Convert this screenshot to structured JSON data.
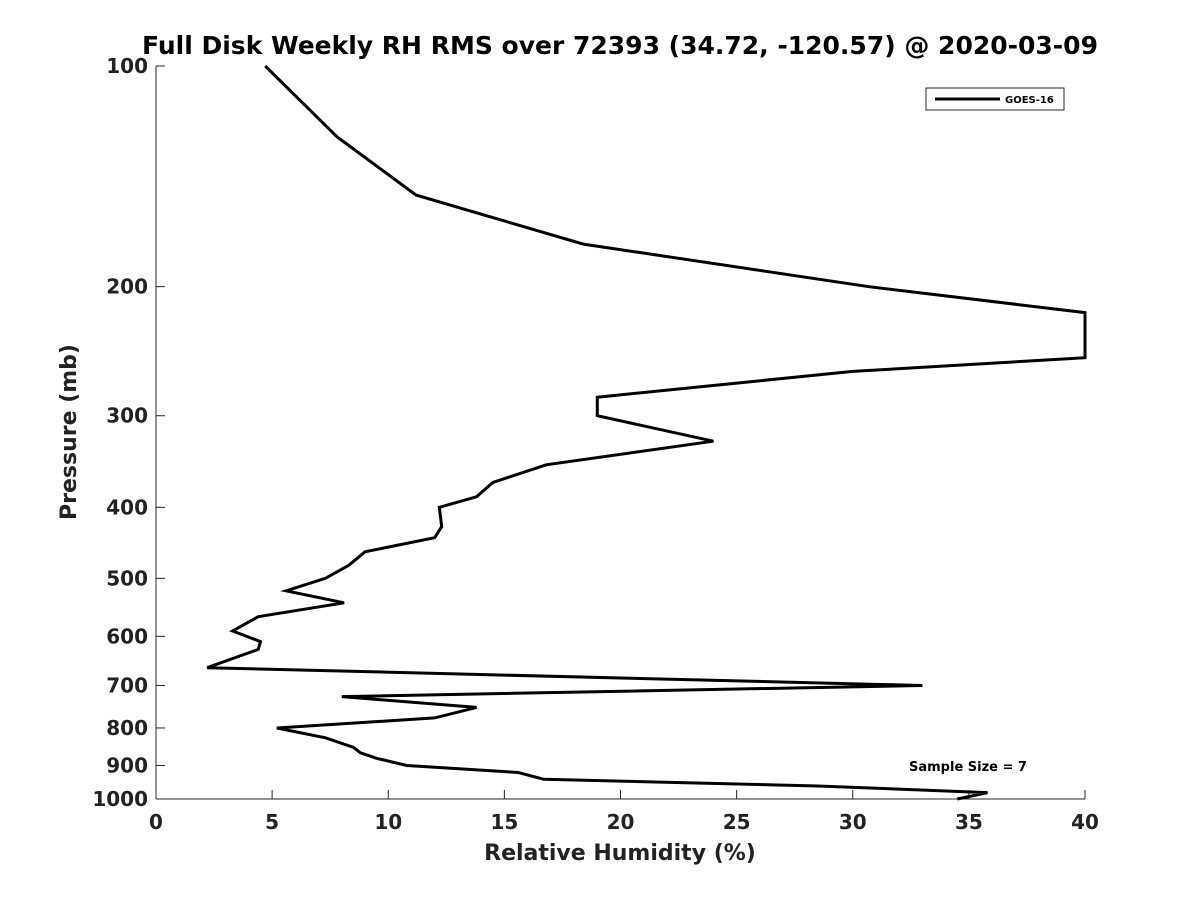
{
  "chart_data": {
    "type": "line",
    "title": "Full Disk Weekly RH RMS over 72393 (34.72, -120.57) @ 2020-03-09",
    "xlabel": "Relative Humidity (%)",
    "ylabel": "Pressure (mb)",
    "xlim": [
      0,
      40
    ],
    "ylim": [
      100,
      1000
    ],
    "yscale": "log",
    "reversed_y": true,
    "grid": false,
    "x_ticks": [
      0,
      5,
      10,
      15,
      20,
      25,
      30,
      35,
      40
    ],
    "y_ticks": [
      100,
      200,
      300,
      400,
      500,
      600,
      700,
      800,
      900,
      1000
    ],
    "legend_position": "top-right",
    "series": [
      {
        "name": "GOES-16",
        "color": "#000000",
        "points": [
          [
            4.7,
            100
          ],
          [
            7.8,
            125
          ],
          [
            11.2,
            150
          ],
          [
            18.4,
            175
          ],
          [
            30.7,
            200
          ],
          [
            40,
            217
          ],
          [
            40,
            250
          ],
          [
            30,
            261
          ],
          [
            19.0,
            283
          ],
          [
            19.0,
            300
          ],
          [
            24.0,
            325
          ],
          [
            16.8,
            350
          ],
          [
            14.5,
            370
          ],
          [
            13.8,
            387
          ],
          [
            12.2,
            400
          ],
          [
            12.3,
            425
          ],
          [
            12.0,
            440
          ],
          [
            9.0,
            460
          ],
          [
            8.3,
            480
          ],
          [
            7.3,
            500
          ],
          [
            5.6,
            520
          ],
          [
            8.1,
            540
          ],
          [
            4.4,
            564
          ],
          [
            3.3,
            590
          ],
          [
            4.5,
            610
          ],
          [
            4.4,
            625
          ],
          [
            3.5,
            640
          ],
          [
            2.2,
            662
          ],
          [
            33.0,
            700
          ],
          [
            8.0,
            725
          ],
          [
            13.8,
            750
          ],
          [
            12.0,
            775
          ],
          [
            5.2,
            800
          ],
          [
            7.3,
            825
          ],
          [
            8.5,
            850
          ],
          [
            8.8,
            865
          ],
          [
            9.5,
            880
          ],
          [
            10.8,
            900
          ],
          [
            15.6,
            920
          ],
          [
            16.7,
            940
          ],
          [
            28.5,
            960
          ],
          [
            35.8,
            980
          ],
          [
            34.5,
            1000
          ]
        ]
      }
    ],
    "annotation": "Sample Size = 7"
  }
}
